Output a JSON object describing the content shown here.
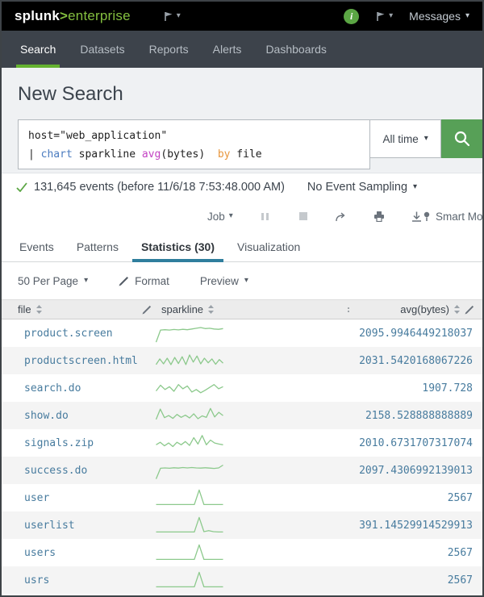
{
  "topbar": {
    "logo_splunk": "splunk",
    "logo_gt": ">",
    "logo_product": "enterprise",
    "messages_label": "Messages",
    "info_glyph": "i"
  },
  "nav": {
    "items": [
      {
        "label": "Search",
        "active": true
      },
      {
        "label": "Datasets",
        "active": false
      },
      {
        "label": "Reports",
        "active": false
      },
      {
        "label": "Alerts",
        "active": false
      },
      {
        "label": "Dashboards",
        "active": false
      }
    ]
  },
  "search": {
    "title": "New Search",
    "query_line1": "host=\"web_application\"",
    "query_line2": {
      "pipe": "| ",
      "cmd": "chart",
      "mid": " sparkline ",
      "func": "avg",
      "args": "(bytes) ",
      "by": " by",
      "field": " file"
    },
    "time_range_label": "All time"
  },
  "status": {
    "events_summary": "131,645 events (before 11/6/18 7:53:48.000 AM)",
    "sampling_label": "No Event Sampling"
  },
  "job_controls": {
    "job_label": "Job",
    "mode_label": "Smart Mode"
  },
  "result_tabs": [
    {
      "label": "Events",
      "active": false
    },
    {
      "label": "Patterns",
      "active": false
    },
    {
      "label": "Statistics (30)",
      "active": true
    },
    {
      "label": "Visualization",
      "active": false
    }
  ],
  "toolbar": {
    "per_page_label": "50 Per Page",
    "format_label": "Format",
    "preview_label": "Preview"
  },
  "table": {
    "columns": [
      "file",
      "sparkline",
      "avg(bytes)"
    ],
    "rows": [
      {
        "file": "product.screen",
        "avg": "2095.9946449218037",
        "spark": [
          2,
          70,
          72,
          70,
          73,
          71,
          74,
          72,
          76,
          80,
          84,
          78,
          80,
          76,
          74,
          78
        ]
      },
      {
        "file": "productscreen.html",
        "avg": "2031.5420168067226",
        "spark": [
          30,
          62,
          34,
          66,
          30,
          70,
          36,
          74,
          30,
          84,
          44,
          78,
          34,
          66,
          40,
          62,
          32,
          58,
          38
        ]
      },
      {
        "file": "search.do",
        "avg": "1907.728",
        "spark": [
          36,
          68,
          44,
          60,
          34,
          72,
          48,
          64,
          30,
          44,
          26,
          40,
          56,
          72,
          48,
          60
        ]
      },
      {
        "file": "show.do",
        "avg": "2158.528888888889",
        "spark": [
          30,
          88,
          40,
          52,
          36,
          58,
          42,
          54,
          38,
          62,
          34,
          50,
          42,
          92,
          44,
          70,
          52
        ]
      },
      {
        "file": "signals.zip",
        "avg": "2010.6731707317074",
        "spark": [
          42,
          56,
          36,
          52,
          32,
          56,
          42,
          60,
          38,
          82,
          46,
          94,
          42,
          68,
          52,
          46,
          42
        ]
      },
      {
        "file": "success.do",
        "avg": "2097.4306992139013",
        "spark": [
          4,
          64,
          66,
          64,
          67,
          65,
          68,
          66,
          68,
          66,
          65,
          67,
          65,
          63,
          66,
          82
        ]
      },
      {
        "file": "user",
        "avg": "2567",
        "spark": [
          14,
          14,
          14,
          14,
          14,
          14,
          14,
          14,
          14,
          96,
          14,
          14,
          14,
          14,
          14
        ]
      },
      {
        "file": "userlist",
        "avg": "391.14529914529913",
        "spark": [
          14,
          14,
          14,
          14,
          14,
          14,
          14,
          14,
          14,
          96,
          16,
          22,
          16,
          14,
          14
        ]
      },
      {
        "file": "users",
        "avg": "2567",
        "spark": [
          14,
          14,
          14,
          14,
          14,
          14,
          14,
          14,
          14,
          96,
          14,
          14,
          14,
          14,
          14
        ]
      },
      {
        "file": "usrs",
        "avg": "2567",
        "spark": [
          14,
          14,
          14,
          14,
          14,
          14,
          14,
          14,
          14,
          96,
          14,
          14,
          14,
          14,
          14
        ]
      }
    ]
  },
  "icons": {
    "caret_down": "▾"
  },
  "colors": {
    "accent_green": "#65b230",
    "logo_green": "#84bf3f",
    "info_green": "#5ba644",
    "button_green": "#57a057",
    "tab_underline_blue": "#2f7e9d",
    "link_blue": "#477b9e",
    "sparkline_green": "#8cc98c"
  }
}
